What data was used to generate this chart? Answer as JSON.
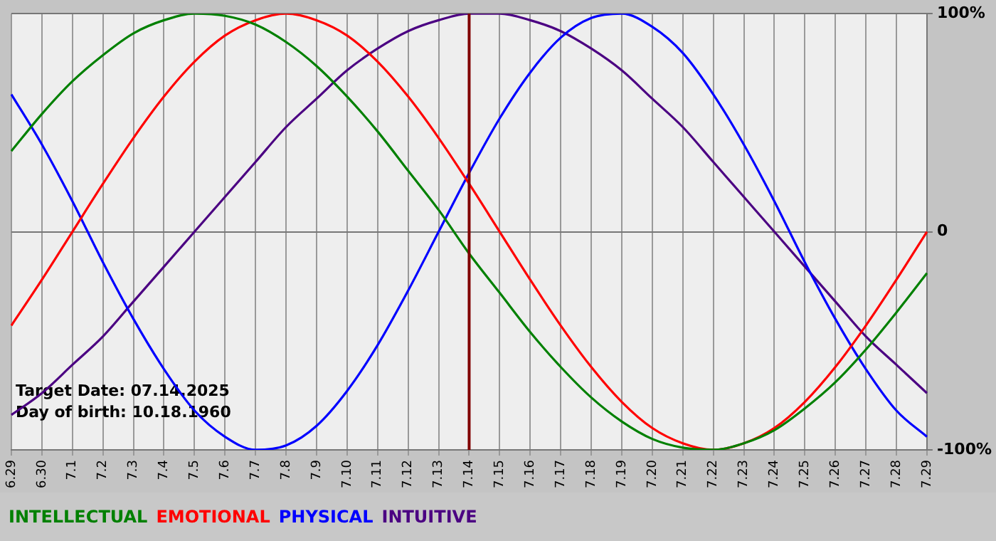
{
  "chart_data": {
    "type": "line",
    "categories": [
      "6.29",
      "6.30",
      "7.1",
      "7.2",
      "7.3",
      "7.4",
      "7.5",
      "7.6",
      "7.7",
      "7.8",
      "7.9",
      "7.10",
      "7.11",
      "7.12",
      "7.13",
      "7.14",
      "7.15",
      "7.16",
      "7.17",
      "7.18",
      "7.19",
      "7.20",
      "7.21",
      "7.22",
      "7.23",
      "7.24",
      "7.25",
      "7.26",
      "7.27",
      "7.28",
      "7.29"
    ],
    "series": [
      {
        "name": "INTELLECTUAL",
        "color": "#008000",
        "values": [
          37,
          54,
          69,
          81,
          91,
          97,
          100,
          99,
          95,
          87,
          76,
          62,
          46,
          28,
          10,
          -10,
          -28,
          -46,
          -62,
          -76,
          -87,
          -95,
          -99,
          -100,
          -97,
          -91,
          -81,
          -69,
          -54,
          -37,
          -19
        ]
      },
      {
        "name": "EMOTIONAL",
        "color": "#ff0000",
        "values": [
          -43,
          -22,
          0,
          22,
          43,
          62,
          78,
          90,
          97,
          100,
          97,
          90,
          78,
          62,
          43,
          22,
          0,
          -22,
          -43,
          -62,
          -78,
          -90,
          -97,
          -100,
          -97,
          -90,
          -78,
          -62,
          -43,
          -22,
          0
        ]
      },
      {
        "name": "PHYSICAL",
        "color": "#0000ff",
        "values": [
          63,
          40,
          14,
          -14,
          -40,
          -63,
          -82,
          -94,
          -100,
          -98,
          -89,
          -73,
          -52,
          -27,
          0,
          27,
          52,
          73,
          89,
          98,
          100,
          94,
          82,
          63,
          40,
          14,
          -14,
          -40,
          -63,
          -82,
          -94
        ]
      },
      {
        "name": "INTUITIVE",
        "color": "#4b0082",
        "values": [
          -84,
          -74,
          -61,
          -48,
          -32,
          -16,
          0,
          16,
          32,
          48,
          61,
          74,
          84,
          92,
          97,
          100,
          100,
          97,
          92,
          84,
          74,
          61,
          48,
          32,
          16,
          0,
          -16,
          -32,
          -48,
          -61,
          -74
        ]
      }
    ],
    "ylim": [
      -100,
      100
    ],
    "yticks": [
      {
        "value": -100,
        "label": "-100%"
      },
      {
        "value": 0,
        "label": "0"
      },
      {
        "value": 100,
        "label": "100%"
      }
    ],
    "grid": true,
    "legend": "bottom left",
    "marker": "none",
    "line_style": "solid",
    "ref_lines": [
      {
        "axis": "x",
        "value": "7.14",
        "color": "#800000"
      }
    ],
    "annotations": [
      "Target Date: 07.14.2025",
      "Day of birth: 10.18.1960"
    ]
  }
}
